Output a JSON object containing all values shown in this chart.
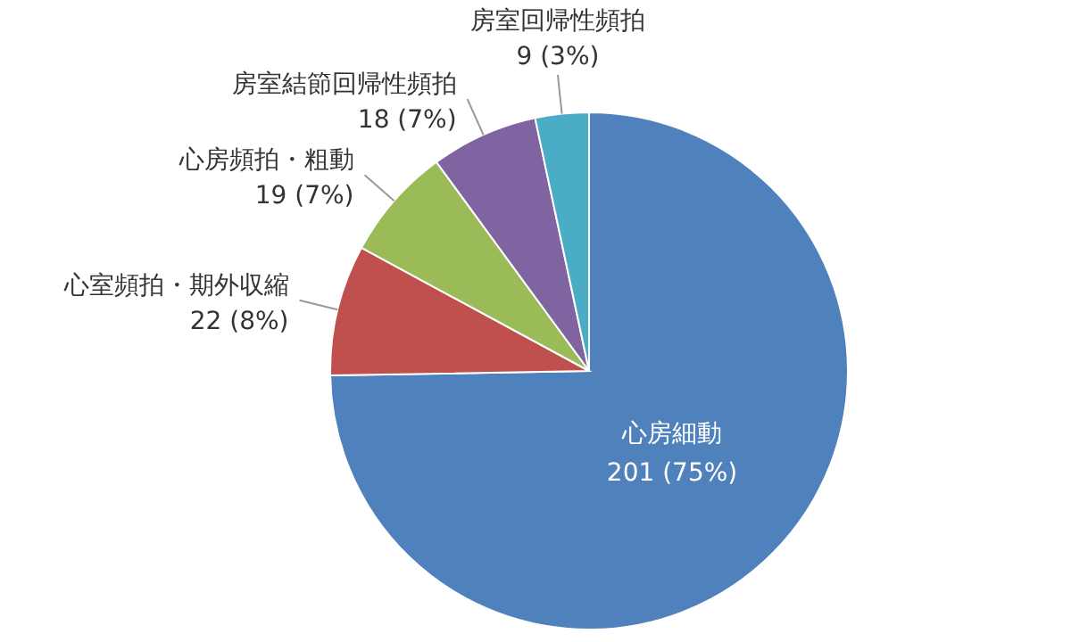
{
  "chart_data": {
    "type": "pie",
    "categories": [
      "心房細動",
      "心室頻拍・期外収縮",
      "心房頻拍・粗動",
      "房室結節回帰性頻拍",
      "房室回帰性頻拍"
    ],
    "values": [
      201,
      22,
      19,
      18,
      9
    ],
    "value_labels": [
      "201 (75%)",
      "22 (8%)",
      "19 (7%)",
      "18 (7%)",
      "9 (3%)"
    ],
    "colors": [
      "#4f81bd",
      "#c0504d",
      "#9bbb59",
      "#8064a2",
      "#4bacc6"
    ],
    "legend": false
  }
}
